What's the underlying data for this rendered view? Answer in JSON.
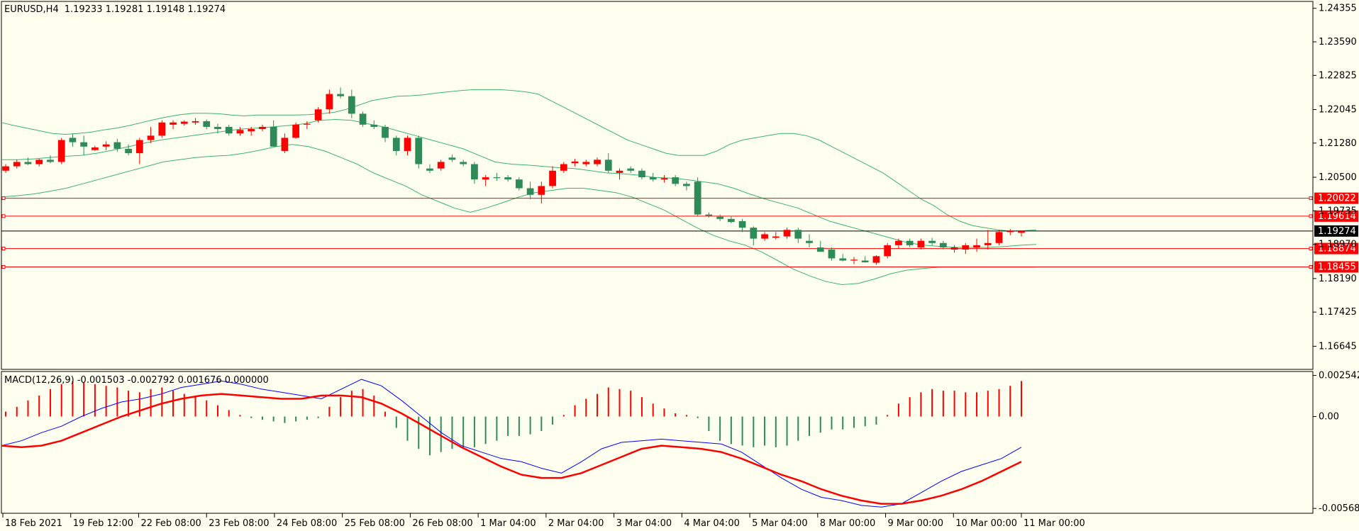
{
  "header": {
    "symbol": "EURUSD,H4",
    "ohlc": "1.19233 1.19281 1.19148 1.19274"
  },
  "macd_header": "MACD(12,26,9) -0.001503 -0.002792 0.001676 0.000000",
  "colors": {
    "background": "#fffff0",
    "bull": "#2e8b57",
    "bear": "#ff0000",
    "bands": "#3cb371",
    "macd_main": "#0000ff",
    "macd_signal": "#ff0000",
    "hline": "#ff0000",
    "price_line": "#000000"
  },
  "chart_data": [
    {
      "type": "candlestick",
      "title": "EURUSD,H4",
      "x_labels": [
        "18 Feb 2021",
        "19 Feb 12:00",
        "22 Feb 08:00",
        "23 Feb 08:00",
        "24 Feb 08:00",
        "25 Feb 08:00",
        "26 Feb 08:00",
        "1 Mar 04:00",
        "2 Mar 04:00",
        "3 Mar 04:00",
        "4 Mar 04:00",
        "5 Mar 04:00",
        "8 Mar 00:00",
        "9 Mar 00:00",
        "10 Mar 00:00",
        "11 Mar 00:00"
      ],
      "y_ticks": [
        "1.24355",
        "1.23590",
        "1.22825",
        "1.22045",
        "1.21280",
        "1.20500",
        "1.19735",
        "1.18970",
        "1.18190",
        "1.17425",
        "1.16645"
      ],
      "ylim": [
        1.1615,
        1.2448
      ],
      "current_price": "1.19274",
      "horizontal_lines": [
        "1.20022",
        "1.19614",
        "1.18874",
        "1.18455"
      ],
      "indicator": "Bollinger Bands",
      "candles_ohlc": [
        [
          1.2065,
          1.208,
          1.206,
          1.2075
        ],
        [
          1.2075,
          1.209,
          1.207,
          1.2085
        ],
        [
          1.2085,
          1.2095,
          1.2078,
          1.208
        ],
        [
          1.208,
          1.2092,
          1.2075,
          1.209
        ],
        [
          1.209,
          1.21,
          1.2082,
          1.2085
        ],
        [
          1.2085,
          1.214,
          1.208,
          1.2135
        ],
        [
          1.214,
          1.215,
          1.212,
          1.213
        ],
        [
          1.213,
          1.2145,
          1.21,
          1.212
        ],
        [
          1.2112,
          1.2122,
          1.211,
          1.2118
        ],
        [
          1.212,
          1.2132,
          1.2112,
          1.2125
        ],
        [
          1.213,
          1.2138,
          1.2108,
          1.2115
        ],
        [
          1.2115,
          1.2125,
          1.21,
          1.2105
        ],
        [
          1.2105,
          1.214,
          1.208,
          1.2135
        ],
        [
          1.2135,
          1.2165,
          1.2128,
          1.2145
        ],
        [
          1.2145,
          1.218,
          1.214,
          1.2175
        ],
        [
          1.217,
          1.218,
          1.216,
          1.2175
        ],
        [
          1.2172,
          1.218,
          1.2168,
          1.2177
        ],
        [
          1.2175,
          1.2185,
          1.217,
          1.2178
        ],
        [
          1.2178,
          1.2182,
          1.216,
          1.2165
        ],
        [
          1.2165,
          1.2172,
          1.215,
          1.216
        ],
        [
          1.2165,
          1.217,
          1.2145,
          1.215
        ],
        [
          1.215,
          1.2165,
          1.2145,
          1.2158
        ],
        [
          1.2155,
          1.2165,
          1.2145,
          1.216
        ],
        [
          1.216,
          1.217,
          1.2155,
          1.2165
        ],
        [
          1.2165,
          1.218,
          1.214,
          1.212
        ],
        [
          1.211,
          1.215,
          1.2105,
          1.214
        ],
        [
          1.214,
          1.2175,
          1.2138,
          1.217
        ],
        [
          1.217,
          1.2178,
          1.216,
          1.2172
        ],
        [
          1.218,
          1.221,
          1.2175,
          1.2205
        ],
        [
          1.2205,
          1.225,
          1.2195,
          1.224
        ],
        [
          1.224,
          1.2255,
          1.223,
          1.2235
        ],
        [
          1.2235,
          1.225,
          1.2185,
          1.2195
        ],
        [
          1.2195,
          1.22,
          1.2165,
          1.217
        ],
        [
          1.217,
          1.218,
          1.216,
          1.2165
        ],
        [
          1.2165,
          1.217,
          1.213,
          1.214
        ],
        [
          1.214,
          1.2145,
          1.21,
          1.211
        ],
        [
          1.211,
          1.2145,
          1.21,
          1.214
        ],
        [
          1.214,
          1.2145,
          1.207,
          1.208
        ],
        [
          1.207,
          1.208,
          1.206,
          1.2065
        ],
        [
          1.207,
          1.209,
          1.2065,
          1.2085
        ],
        [
          1.2095,
          1.2102,
          1.2085,
          1.209
        ],
        [
          1.2085,
          1.209,
          1.2075,
          1.208
        ],
        [
          1.208,
          1.2085,
          1.2035,
          1.2045
        ],
        [
          1.2045,
          1.2055,
          1.203,
          1.205
        ],
        [
          1.205,
          1.206,
          1.2042,
          1.2048
        ],
        [
          1.205,
          1.2055,
          1.204,
          1.2045
        ],
        [
          1.2045,
          1.205,
          1.202,
          1.2025
        ],
        [
          1.2025,
          1.204,
          1.2,
          1.201
        ],
        [
          1.201,
          1.204,
          1.199,
          1.203
        ],
        [
          1.203,
          1.2075,
          1.2025,
          1.2065
        ],
        [
          1.2065,
          1.2085,
          1.206,
          1.208
        ],
        [
          1.2082,
          1.2092,
          1.2075,
          1.2086
        ],
        [
          1.208,
          1.209,
          1.2075,
          1.2085
        ],
        [
          1.208,
          1.2095,
          1.2075,
          1.209
        ],
        [
          1.209,
          1.2105,
          1.206,
          1.2065
        ],
        [
          1.206,
          1.207,
          1.2045,
          1.2065
        ],
        [
          1.207,
          1.2075,
          1.206,
          1.2065
        ],
        [
          1.2065,
          1.207,
          1.2045,
          1.205
        ],
        [
          1.205,
          1.206,
          1.204,
          1.2045
        ],
        [
          1.2045,
          1.2055,
          1.2038,
          1.2048
        ],
        [
          1.205,
          1.2055,
          1.203,
          1.2035
        ],
        [
          1.2035,
          1.204,
          1.202,
          1.203
        ],
        [
          1.204,
          1.205,
          1.196,
          1.1965
        ],
        [
          1.1965,
          1.197,
          1.1958,
          1.1962
        ],
        [
          1.196,
          1.1965,
          1.195,
          1.1955
        ],
        [
          1.1955,
          1.1962,
          1.1945,
          1.1948
        ],
        [
          1.195,
          1.1955,
          1.1925,
          1.1935
        ],
        [
          1.1935,
          1.1938,
          1.1895,
          1.191
        ],
        [
          1.191,
          1.1925,
          1.1905,
          1.192
        ],
        [
          1.1912,
          1.1925,
          1.1908,
          1.1915
        ],
        [
          1.1915,
          1.1935,
          1.191,
          1.193
        ],
        [
          1.193,
          1.1935,
          1.19,
          1.191
        ],
        [
          1.1905,
          1.192,
          1.189,
          1.19
        ],
        [
          1.189,
          1.1905,
          1.188,
          1.188
        ],
        [
          1.1885,
          1.189,
          1.186,
          1.1865
        ],
        [
          1.1865,
          1.1875,
          1.1858,
          1.186
        ],
        [
          1.186,
          1.1868,
          1.1852,
          1.1862
        ],
        [
          1.186,
          1.187,
          1.1855,
          1.1856
        ],
        [
          1.1855,
          1.1872,
          1.185,
          1.187
        ],
        [
          1.187,
          1.19,
          1.1865,
          1.1895
        ],
        [
          1.1895,
          1.191,
          1.1888,
          1.1905
        ],
        [
          1.1905,
          1.191,
          1.189,
          1.1895
        ],
        [
          1.189,
          1.191,
          1.1885,
          1.1905
        ],
        [
          1.1905,
          1.1912,
          1.1895,
          1.19
        ],
        [
          1.19,
          1.1905,
          1.1885,
          1.189
        ],
        [
          1.1885,
          1.1895,
          1.1878,
          1.189
        ],
        [
          1.1885,
          1.19,
          1.1875,
          1.1895
        ],
        [
          1.189,
          1.191,
          1.188,
          1.1895
        ],
        [
          1.1895,
          1.193,
          1.1885,
          1.19
        ],
        [
          1.19,
          1.193,
          1.1895,
          1.1925
        ],
        [
          1.1925,
          1.1932,
          1.1918,
          1.1927
        ],
        [
          1.19233,
          1.19281,
          1.19148,
          1.19274
        ]
      ],
      "bollinger_upper": [
        1.2175,
        1.2168,
        1.2162,
        1.2156,
        1.215,
        1.2148,
        1.215,
        1.2153,
        1.2158,
        1.2162,
        1.2168,
        1.2175,
        1.2182,
        1.2188,
        1.2193,
        1.2196,
        1.2196,
        1.2195,
        1.2192,
        1.219,
        1.2192,
        1.2192,
        1.2192,
        1.2192,
        1.2193,
        1.2195,
        1.2198,
        1.2205,
        1.2215,
        1.2225,
        1.223,
        1.2235,
        1.2236,
        1.2238,
        1.2242,
        1.2245,
        1.2248,
        1.225,
        1.225,
        1.225,
        1.2248,
        1.2245,
        1.224,
        1.2225,
        1.221,
        1.2195,
        1.218,
        1.2165,
        1.215,
        1.2135,
        1.2125,
        1.2115,
        1.2105,
        1.21,
        1.21,
        1.21,
        1.211,
        1.2125,
        1.2135,
        1.214,
        1.2145,
        1.215,
        1.215,
        1.2145,
        1.2135,
        1.212,
        1.2105,
        1.209,
        1.2075,
        1.206,
        1.204,
        1.202,
        1.2,
        1.1985,
        1.1965,
        1.195,
        1.194,
        1.1935,
        1.193,
        1.1927,
        1.1928,
        1.193
      ],
      "bollinger_middle": [
        1.209,
        1.209,
        1.2092,
        1.2095,
        1.2098,
        1.21,
        1.2105,
        1.2112,
        1.212,
        1.2128,
        1.2135,
        1.214,
        1.2145,
        1.215,
        1.2155,
        1.216,
        1.2162,
        1.2165,
        1.2168,
        1.2172,
        1.218,
        1.2182,
        1.218,
        1.2172,
        1.2165,
        1.2155,
        1.2145,
        1.2135,
        1.2125,
        1.2115,
        1.21,
        1.2085,
        1.208,
        1.2078,
        1.2075,
        1.2072,
        1.207,
        1.2065,
        1.206,
        1.2058,
        1.2055,
        1.205,
        1.2048,
        1.2045,
        1.204,
        1.2035,
        1.2025,
        1.2012,
        1.2,
        1.199,
        1.198,
        1.1965,
        1.195,
        1.194,
        1.193,
        1.192,
        1.191,
        1.19,
        1.1895,
        1.1892,
        1.189,
        1.189,
        1.189,
        1.1892,
        1.1895,
        1.1897
      ],
      "bollinger_lower": [
        1.2005,
        1.2008,
        1.2012,
        1.2018,
        1.2025,
        1.2035,
        1.2045,
        1.2055,
        1.2065,
        1.2075,
        1.2085,
        1.209,
        1.2095,
        1.2098,
        1.21,
        1.2105,
        1.2112,
        1.212,
        1.2125,
        1.212,
        1.211,
        1.2095,
        1.208,
        1.206,
        1.2045,
        1.203,
        1.201,
        1.1995,
        1.198,
        1.197,
        1.198,
        1.1992,
        1.2005,
        1.2015,
        1.202,
        1.2025,
        1.2025,
        1.202,
        1.2015,
        1.2005,
        1.199,
        1.1975,
        1.1955,
        1.1935,
        1.1918,
        1.1905,
        1.1895,
        1.188,
        1.186,
        1.184,
        1.1825,
        1.1812,
        1.1805,
        1.1808,
        1.1818,
        1.183,
        1.1838,
        1.1842,
        1.1845,
        1.1845,
        1.1845,
        1.1845,
        1.1845,
        1.1845,
        1.1845
      ]
    },
    {
      "type": "bar+line",
      "title": "MACD(12,26,9) -0.001503 -0.002792 0.001676 0.000000",
      "y_ticks": [
        "0.002542",
        "0.00",
        "-0.005687"
      ],
      "ylim": [
        -0.0059,
        0.0027
      ],
      "histogram": [
        0.0003,
        0.0006,
        0.001,
        0.0013,
        0.0017,
        0.002,
        0.0022,
        0.0021,
        0.002,
        0.0019,
        0.0018,
        0.0016,
        0.0015,
        0.0017,
        0.0018,
        0.0016,
        0.0014,
        0.0012,
        0.001,
        0.0007,
        0.0004,
        0.0001,
        -0.0001,
        -0.0002,
        -0.0003,
        -0.0004,
        -0.0003,
        -0.0002,
        -0.0001,
        0.0006,
        0.0012,
        0.0016,
        0.0017,
        0.0013,
        0.0003,
        -0.0007,
        -0.0015,
        -0.002,
        -0.0024,
        -0.0022,
        -0.002,
        -0.0019,
        -0.0019,
        -0.0017,
        -0.0015,
        -0.0012,
        -0.0012,
        -0.0011,
        -0.0009,
        -0.0005,
        0.0001,
        0.0007,
        0.0011,
        0.0014,
        0.0018,
        0.0017,
        0.0016,
        0.0012,
        0.0008,
        0.0005,
        0.0002,
        0.0001,
        -0.0001,
        -0.0009,
        -0.0015,
        -0.0017,
        -0.0018,
        -0.0019,
        -0.0018,
        -0.0019,
        -0.0018,
        -0.0015,
        -0.0012,
        -0.001,
        -0.0008,
        -0.0008,
        -0.0007,
        -0.0006,
        -0.0005,
        0.0001,
        0.0008,
        0.0012,
        0.0015,
        0.0017,
        0.0016,
        0.0016,
        0.0015,
        0.0015,
        0.0016,
        0.0017,
        0.0019,
        0.0022
      ],
      "macd_main": [
        -0.0018,
        -0.0015,
        -0.001,
        -0.0006,
        0.0,
        0.0005,
        0.0009,
        0.0011,
        0.0014,
        0.0018,
        0.002,
        0.0022,
        0.002,
        0.0017,
        0.0015,
        0.0013,
        0.0011,
        0.0017,
        0.0023,
        0.0019,
        0.001,
        0.0,
        -0.001,
        -0.0018,
        -0.0022,
        -0.0026,
        -0.0028,
        -0.0032,
        -0.0035,
        -0.0028,
        -0.002,
        -0.0016,
        -0.0015,
        -0.0014,
        -0.0015,
        -0.0016,
        -0.0017,
        -0.0022,
        -0.003,
        -0.0038,
        -0.0045,
        -0.005,
        -0.0052,
        -0.0055,
        -0.0056,
        -0.0054,
        -0.0047,
        -0.004,
        -0.0034,
        -0.003,
        -0.0026,
        -0.0019
      ],
      "macd_signal": [
        -0.0018,
        -0.0019,
        -0.0018,
        -0.0015,
        -0.001,
        -0.0005,
        0.0,
        0.0004,
        0.0008,
        0.0011,
        0.0013,
        0.0014,
        0.0013,
        0.0012,
        0.0011,
        0.0011,
        0.0013,
        0.0013,
        0.0012,
        0.0008,
        0.0002,
        -0.0005,
        -0.0012,
        -0.0019,
        -0.0025,
        -0.0031,
        -0.0036,
        -0.0038,
        -0.0038,
        -0.0035,
        -0.003,
        -0.0025,
        -0.002,
        -0.0018,
        -0.0019,
        -0.002,
        -0.0022,
        -0.0026,
        -0.0031,
        -0.0036,
        -0.004,
        -0.0045,
        -0.0049,
        -0.0052,
        -0.0054,
        -0.0054,
        -0.0052,
        -0.0049,
        -0.0045,
        -0.004,
        -0.0034,
        -0.0028
      ]
    }
  ]
}
